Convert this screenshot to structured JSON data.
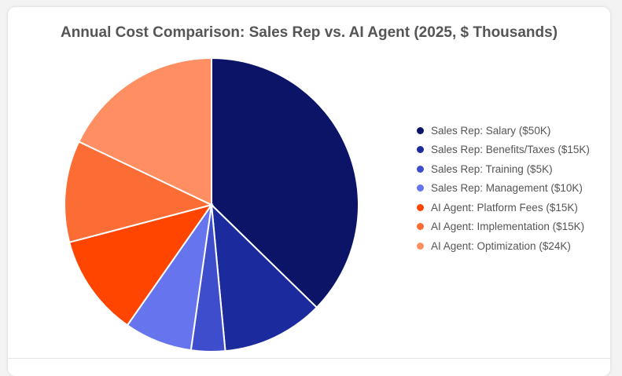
{
  "chart_data": {
    "type": "pie",
    "title": "Annual Cost Comparison: Sales Rep vs. AI Agent (2025, $ Thousands)",
    "legend_position": "right",
    "slices": [
      {
        "label": "Sales Rep: Salary ($50K)",
        "value": 50,
        "color": "#0b1466"
      },
      {
        "label": "Sales Rep: Benefits/Taxes ($15K)",
        "value": 15,
        "color": "#1b2a9c"
      },
      {
        "label": "Sales Rep: Training ($5K)",
        "value": 5,
        "color": "#3e4dcc"
      },
      {
        "label": "Sales Rep: Management ($10K)",
        "value": 10,
        "color": "#6675ee"
      },
      {
        "label": "AI Agent: Platform Fees ($15K)",
        "value": 15,
        "color": "#ff4500"
      },
      {
        "label": "AI Agent: Implementation ($15K)",
        "value": 15,
        "color": "#fb6d34"
      },
      {
        "label": "AI Agent: Optimization ($24K)",
        "value": 24,
        "color": "#ff8f63"
      }
    ]
  }
}
